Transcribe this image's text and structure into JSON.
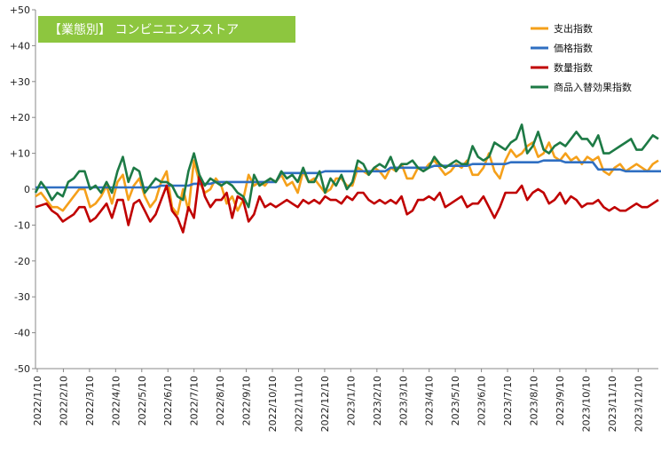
{
  "chart_data": {
    "type": "line",
    "title": "【業態別】 コンビニエンスストア",
    "ylim": [
      -50,
      50
    ],
    "y_ticks": [
      50,
      40,
      30,
      20,
      10,
      0,
      -10,
      -20,
      -30,
      -40,
      -50
    ],
    "y_tick_labels": [
      "+50",
      "+40",
      "+30",
      "+20",
      "+10",
      "0",
      "-10",
      "-20",
      "-30",
      "-40",
      "-50"
    ],
    "x_tick_labels": [
      "2022/1/10",
      "2022/2/10",
      "2022/3/10",
      "2022/4/10",
      "2022/5/10",
      "2022/6/10",
      "2022/7/10",
      "2022/8/10",
      "2022/9/10",
      "2022/10/10",
      "2022/11/10",
      "2022/12/10",
      "2023/1/10",
      "2023/2/10",
      "2023/3/10",
      "2023/4/10",
      "2023/5/10",
      "2023/6/10",
      "2023/7/10",
      "2023/8/10",
      "2023/9/10",
      "2023/10/10",
      "2023/11/10",
      "2023/12/10"
    ],
    "grid": false,
    "legend_position": "top-right",
    "title_bg": "#8dc63f",
    "series": [
      {
        "name": "支出指数",
        "color": "#f5a01a",
        "values": [
          -2,
          -1,
          -3,
          -5,
          -5,
          -6,
          -4,
          -2,
          0,
          0,
          -5,
          -4,
          -2,
          1,
          -4,
          2,
          4,
          -3,
          1,
          3,
          -2,
          -5,
          -3,
          2,
          5,
          -5,
          -7,
          0,
          -6,
          8,
          2,
          -1,
          0,
          3,
          1,
          -4,
          -2,
          -6,
          -3,
          4,
          1,
          2,
          1,
          3,
          2,
          4,
          1,
          2,
          -1,
          5,
          2,
          3,
          1,
          -1,
          0,
          3,
          3,
          1,
          1,
          6,
          5,
          4,
          6,
          5,
          3,
          6,
          5,
          7,
          3,
          3,
          6,
          5,
          7,
          8,
          6,
          4,
          5,
          7,
          6,
          8,
          4,
          4,
          6,
          10,
          5,
          3,
          8,
          11,
          9,
          10,
          12,
          13,
          9,
          10,
          13,
          9,
          8,
          10,
          8,
          9,
          7,
          9,
          8,
          9,
          5,
          4,
          6,
          7,
          5,
          6,
          7,
          6,
          5,
          7,
          8
        ]
      },
      {
        "name": "価格指数",
        "color": "#2f6fc2",
        "values": [
          0.5,
          0.5,
          0.5,
          0.5,
          0.5,
          0.5,
          0.5,
          0.5,
          0.5,
          0.5,
          0.5,
          0.5,
          0.5,
          0.5,
          0.5,
          0.5,
          0.5,
          0.5,
          0.5,
          0.5,
          0.5,
          0.5,
          0.5,
          1,
          1,
          1,
          1,
          1,
          1,
          1.5,
          1.5,
          1.5,
          1.5,
          2,
          2,
          2,
          2,
          2,
          2,
          2,
          2,
          2,
          2,
          2,
          2,
          4.5,
          4.5,
          4.5,
          4.5,
          4.5,
          4.5,
          4.5,
          4.5,
          5,
          5,
          5,
          5,
          5,
          5,
          5,
          5,
          5,
          5,
          5,
          5,
          6,
          6,
          6,
          6,
          6,
          6,
          6,
          6,
          6.5,
          6.5,
          6.5,
          6.5,
          6.5,
          6.5,
          6.5,
          7,
          7,
          7,
          7,
          7,
          7,
          7,
          7.5,
          7.5,
          7.5,
          7.5,
          7.5,
          7.5,
          8,
          8,
          8,
          8,
          7.5,
          7.5,
          7.5,
          7.5,
          7.5,
          7.5,
          5.5,
          5.5,
          5.5,
          5.5,
          5.5,
          5,
          5,
          5,
          5,
          5,
          5,
          5,
          5,
          5,
          5,
          5
        ]
      },
      {
        "name": "数量指数",
        "color": "#c00000",
        "values": [
          -5,
          -4.5,
          -4,
          -6,
          -7,
          -9,
          -8,
          -7,
          -5,
          -5,
          -9,
          -8,
          -6,
          -4,
          -8,
          -3,
          -3,
          -10,
          -4,
          -3,
          -6,
          -9,
          -7,
          -3,
          1,
          -6,
          -8,
          -12,
          -5,
          -8,
          4,
          -2,
          -5,
          -3,
          -3,
          -1,
          -8,
          -2,
          -3,
          -9,
          -7,
          -2,
          -5,
          -4,
          -5,
          -4,
          -3,
          -4,
          -5,
          -3,
          -4,
          -3,
          -4,
          -2,
          -3,
          -3,
          -4,
          -2,
          -3,
          -1,
          -1,
          -3,
          -4,
          -3,
          -4,
          -3,
          -4,
          -2,
          -7,
          -6,
          -3,
          -3,
          -2,
          -3,
          -1,
          -5,
          -4,
          -3,
          -2,
          -5,
          -4,
          -4,
          -2,
          -5,
          -8,
          -5,
          -1,
          -1,
          -1,
          1,
          -3,
          -1,
          0,
          -1,
          -4,
          -3,
          -1,
          -4,
          -2,
          -3,
          -5,
          -4,
          -4,
          -3,
          -5,
          -6,
          -5,
          -6,
          -6,
          -5,
          -4,
          -5,
          -5,
          -4,
          -3
        ]
      },
      {
        "name": "商品入替効果指数",
        "color": "#1d7a45",
        "values": [
          -1,
          2,
          0,
          -3,
          -1,
          -2,
          2,
          3,
          5,
          5,
          0,
          1,
          -1,
          2,
          -1,
          5,
          9,
          2,
          6,
          5,
          -1,
          1,
          3,
          2,
          2,
          1,
          -2,
          -3,
          5,
          10,
          4,
          1,
          3,
          2,
          1,
          2,
          1,
          -1,
          -2,
          -5,
          4,
          1,
          2,
          3,
          2,
          5,
          3,
          4,
          2,
          6,
          2,
          2,
          5,
          -1,
          3,
          1,
          4,
          0,
          2,
          8,
          7,
          4,
          6,
          7,
          6,
          9,
          5,
          7,
          7,
          8,
          6,
          5,
          6,
          9,
          7,
          6,
          7,
          8,
          7,
          7,
          12,
          9,
          8,
          9,
          13,
          12,
          11,
          13,
          14,
          18,
          10,
          12,
          16,
          11,
          10,
          12,
          13,
          12,
          14,
          16,
          14,
          14,
          12,
          15,
          10,
          10,
          11,
          12,
          13,
          14,
          11,
          11,
          13,
          15,
          14
        ]
      }
    ]
  }
}
